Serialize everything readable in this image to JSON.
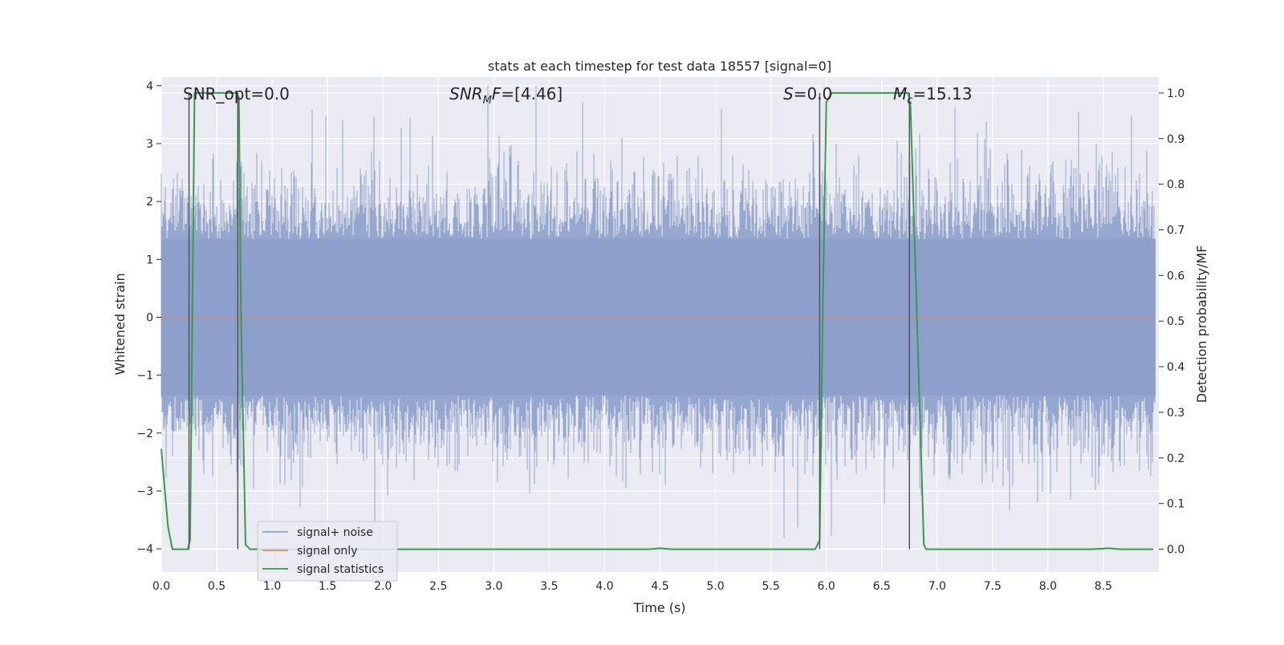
{
  "chart_data": {
    "type": "line",
    "title": "stats at each timestep for test data 18557 [signal=0]",
    "xlabel": "Time (s)",
    "ylabel_left": "Whitened strain",
    "ylabel_right": "Detection probability/MF",
    "xlim": [
      0.0,
      9.0
    ],
    "ylim_left": [
      -4.4,
      4.15
    ],
    "ylim_right": [
      -0.05,
      1.035
    ],
    "x_ticks": [
      "0.0",
      "0.5",
      "1.0",
      "1.5",
      "2.0",
      "2.5",
      "3.0",
      "3.5",
      "4.0",
      "4.5",
      "5.0",
      "5.5",
      "6.0",
      "6.5",
      "7.0",
      "7.5",
      "8.0",
      "8.5"
    ],
    "y_ticks_left": [
      "4",
      "3",
      "2",
      "1",
      "0",
      "−1",
      "−2",
      "−3",
      "−4"
    ],
    "y_ticks_right": [
      "1.0",
      "0.9",
      "0.8",
      "0.7",
      "0.6",
      "0.5",
      "0.4",
      "0.3",
      "0.2",
      "0.1",
      "0.0"
    ],
    "grid": true,
    "legend_location": "lower-left",
    "series": [
      {
        "name": "signal+ noise",
        "color": "#8da0cb",
        "kind": "whitened noise, roughly between -4 and 4",
        "axis": "left"
      },
      {
        "name": "signal only",
        "color": "#e08a63",
        "values_constant": 0.0,
        "axis": "left"
      },
      {
        "name": "signal statistics",
        "color": "#3a9a4e",
        "axis": "right",
        "x": [
          0.0,
          0.06,
          0.1,
          0.24,
          0.26,
          0.3,
          0.68,
          0.7,
          0.72,
          0.76,
          0.8,
          4.4,
          4.5,
          4.6,
          5.9,
          5.94,
          5.97,
          6.0,
          6.05,
          6.74,
          6.76,
          6.88,
          6.9,
          8.4,
          8.55,
          8.65,
          8.95
        ],
        "y": [
          0.22,
          0.05,
          0.0,
          0.0,
          0.02,
          1.0,
          1.0,
          0.99,
          0.5,
          0.01,
          0.0,
          0.0,
          0.002,
          0.0,
          0.0,
          0.02,
          0.55,
          0.98,
          1.0,
          1.0,
          0.97,
          0.01,
          0.0,
          0.0,
          0.002,
          0.0,
          0.0
        ]
      }
    ],
    "vertical_markers": [
      0.25,
      0.69,
      5.94,
      6.75
    ],
    "annotations": [
      {
        "text": "SNR_opt=0.0",
        "x": 0.19
      },
      {
        "text": "SNR_MF=[4.46]",
        "x": 2.6
      },
      {
        "text": "S=0.0",
        "x": 5.6
      },
      {
        "text": "M_c=15.13",
        "x": 6.6
      }
    ]
  }
}
